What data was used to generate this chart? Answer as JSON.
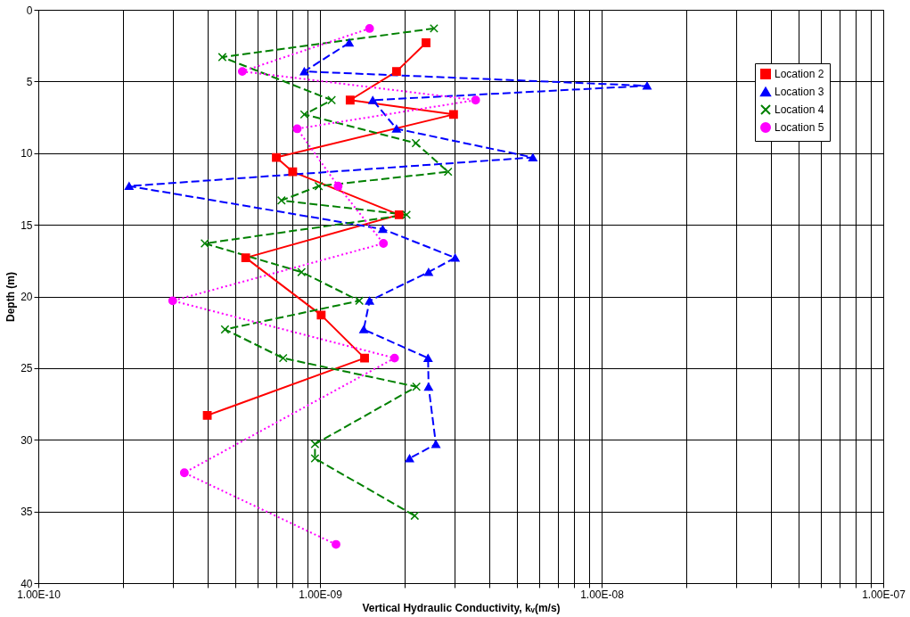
{
  "chart_data": {
    "type": "line",
    "xlabel": "Vertical Hydraulic Conductivity, kᵥ(m/s)",
    "ylabel": "Depth (m)",
    "log": "x",
    "xlim": [
      1e-10,
      1e-07
    ],
    "ylim": [
      40,
      0
    ],
    "xticks": [
      {
        "value": 1e-10,
        "label": "1.00E-10"
      },
      {
        "value": 2e-10,
        "label": null
      },
      {
        "value": 3e-10,
        "label": null
      },
      {
        "value": 4e-10,
        "label": null
      },
      {
        "value": 5e-10,
        "label": null
      },
      {
        "value": 6e-10,
        "label": null
      },
      {
        "value": 7e-10,
        "label": null
      },
      {
        "value": 8e-10,
        "label": null
      },
      {
        "value": 9e-10,
        "label": null
      },
      {
        "value": 1e-09,
        "label": "1.00E-09"
      },
      {
        "value": 2e-09,
        "label": null
      },
      {
        "value": 3e-09,
        "label": null
      },
      {
        "value": 4e-09,
        "label": null
      },
      {
        "value": 5e-09,
        "label": null
      },
      {
        "value": 6e-09,
        "label": null
      },
      {
        "value": 7e-09,
        "label": null
      },
      {
        "value": 8e-09,
        "label": null
      },
      {
        "value": 9e-09,
        "label": null
      },
      {
        "value": 1e-08,
        "label": "1.00E-08"
      },
      {
        "value": 2e-08,
        "label": null
      },
      {
        "value": 3e-08,
        "label": null
      },
      {
        "value": 4e-08,
        "label": null
      },
      {
        "value": 5e-08,
        "label": null
      },
      {
        "value": 6e-08,
        "label": null
      },
      {
        "value": 7e-08,
        "label": null
      },
      {
        "value": 8e-08,
        "label": null
      },
      {
        "value": 9e-08,
        "label": null
      },
      {
        "value": 1e-07,
        "label": "1.00E-07"
      }
    ],
    "yticks": [
      0,
      5,
      10,
      15,
      20,
      25,
      30,
      35,
      40
    ],
    "grid": true,
    "legend": "top right",
    "series": [
      {
        "name": "Location 2",
        "color": "#ff0000",
        "marker": "square",
        "line_style": "solid",
        "x": [
          2.38e-09,
          1.87e-09,
          1.28e-09,
          2.98e-09,
          7e-10,
          8e-10,
          1.91e-09,
          5.45e-10,
          1.01e-09,
          1.44e-09,
          3.98e-10
        ],
        "values": [
          2.3,
          4.3,
          6.3,
          7.3,
          10.3,
          11.3,
          14.3,
          17.3,
          21.3,
          24.3,
          28.3
        ]
      },
      {
        "name": "Location 3",
        "color": "#0000ff",
        "marker": "triangle",
        "line_style": "dashed",
        "x": [
          1.27e-09,
          8.8e-10,
          1.45e-08,
          1.54e-09,
          1.87e-09,
          5.7e-09,
          2.1e-10,
          1.67e-09,
          3.02e-09,
          2.43e-09,
          1.5e-09,
          1.43e-09,
          2.42e-09,
          2.43e-09,
          2.58e-09,
          2.08e-09
        ],
        "values": [
          2.3,
          4.3,
          5.3,
          6.3,
          8.3,
          10.3,
          12.3,
          15.3,
          17.3,
          18.3,
          20.3,
          22.3,
          24.3,
          26.3,
          30.3,
          31.3
        ]
      },
      {
        "name": "Location 4",
        "color": "#008000",
        "marker": "cross",
        "line_style": "dashed",
        "x": [
          2.54e-09,
          4.5e-10,
          1.1e-09,
          8.8e-10,
          2.19e-09,
          2.85e-09,
          9.9e-10,
          7.3e-10,
          2.03e-09,
          3.9e-10,
          8.6e-10,
          1.38e-09,
          4.6e-10,
          7.4e-10,
          2.2e-09,
          9.6e-10,
          9.6e-10,
          2.17e-09
        ],
        "values": [
          1.3,
          3.3,
          6.3,
          7.3,
          9.3,
          11.3,
          12.3,
          13.3,
          14.3,
          16.3,
          18.3,
          20.3,
          22.3,
          24.3,
          26.3,
          30.3,
          31.3,
          35.3
        ]
      },
      {
        "name": "Location 5",
        "color": "#ff00ff",
        "marker": "circle",
        "line_style": "dotted",
        "x": [
          1.5e-09,
          5.3e-10,
          3.57e-09,
          8.3e-10,
          1.16e-09,
          1.68e-09,
          3e-10,
          1.84e-09,
          3.3e-10,
          1.14e-09
        ],
        "values": [
          1.3,
          4.3,
          6.3,
          8.3,
          12.3,
          16.3,
          20.3,
          24.3,
          32.3,
          37.3
        ]
      }
    ]
  }
}
